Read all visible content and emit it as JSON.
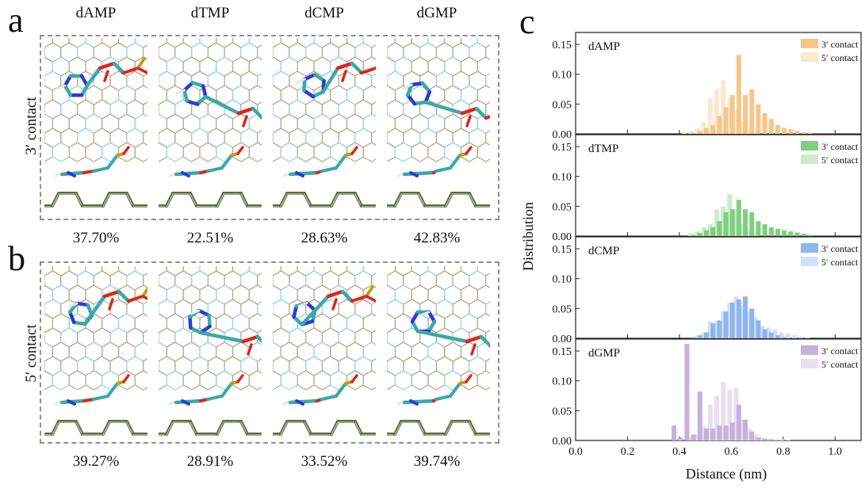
{
  "panels": {
    "a": "a",
    "b": "b",
    "c": "c"
  },
  "columns": [
    "dAMP",
    "dTMP",
    "dCMP",
    "dGMP"
  ],
  "row_labels": {
    "three_prime": "3′ contact",
    "five_prime": "5′ contact"
  },
  "percentages": {
    "three_prime": [
      "37.70%",
      "22.51%",
      "28.63%",
      "42.83%"
    ],
    "five_prime": [
      "39.27%",
      "28.91%",
      "33.52%",
      "39.74%"
    ]
  },
  "colors": {
    "graphene_tan": "#b5a98a",
    "graphene_cyan": "#8fd8e0",
    "carbon": "#3aa9a9",
    "nitrogen": "#2a3bd6",
    "oxygen": "#e0241b",
    "phosphorus": "#b8a215",
    "hydrogen": "#e8e8e8",
    "edge_olive": "#6b6a2a",
    "dAMP": "#f7c58a",
    "dTMP": "#7fcf7f",
    "dCMP": "#8fb5f0",
    "dGMP": "#c7b0dc"
  },
  "chart_data": {
    "type": "bar",
    "xlabel": "Distance (nm)",
    "ylabel": "Distribution",
    "xlim": [
      0.0,
      1.1
    ],
    "ylim": [
      0.0,
      0.17
    ],
    "xticks": [
      "0.0",
      "0.2",
      "0.4",
      "0.6",
      "0.8",
      "1.0"
    ],
    "yticks": [
      "0.00",
      "0.05",
      "0.10",
      "0.15"
    ],
    "bin_width": 0.025,
    "legend_position": "top-right",
    "subplots": [
      {
        "label": "dAMP",
        "color": "#f7c58a",
        "series": [
          {
            "name": "3′ contact",
            "x": [
              0.45,
              0.475,
              0.5,
              0.525,
              0.55,
              0.575,
              0.6,
              0.625,
              0.65,
              0.675,
              0.7,
              0.725,
              0.75,
              0.775,
              0.8,
              0.825,
              0.85,
              0.875,
              0.9
            ],
            "values": [
              0.002,
              0.005,
              0.01,
              0.015,
              0.03,
              0.045,
              0.065,
              0.132,
              0.065,
              0.075,
              0.05,
              0.035,
              0.025,
              0.015,
              0.01,
              0.008,
              0.005,
              0.003,
              0.002
            ]
          },
          {
            "name": "5′ contact",
            "x": [
              0.425,
              0.45,
              0.475,
              0.5,
              0.525,
              0.55,
              0.575,
              0.6,
              0.625,
              0.65,
              0.675,
              0.7
            ],
            "values": [
              0.003,
              0.005,
              0.01,
              0.02,
              0.06,
              0.075,
              0.09,
              0.06,
              0.04,
              0.02,
              0.01,
              0.005
            ]
          }
        ]
      },
      {
        "label": "dTMP",
        "color": "#7fcf7f",
        "series": [
          {
            "name": "3′ contact",
            "x": [
              0.45,
              0.475,
              0.5,
              0.525,
              0.55,
              0.575,
              0.6,
              0.625,
              0.65,
              0.675,
              0.7,
              0.725,
              0.75,
              0.775,
              0.8,
              0.825,
              0.85,
              0.875,
              0.9
            ],
            "values": [
              0.002,
              0.005,
              0.01,
              0.015,
              0.025,
              0.04,
              0.045,
              0.061,
              0.045,
              0.04,
              0.025,
              0.02,
              0.015,
              0.012,
              0.01,
              0.008,
              0.006,
              0.004,
              0.002
            ]
          },
          {
            "name": "5′ contact",
            "x": [
              0.45,
              0.475,
              0.5,
              0.525,
              0.55,
              0.575,
              0.6,
              0.625,
              0.65,
              0.675,
              0.7
            ],
            "values": [
              0.005,
              0.008,
              0.015,
              0.02,
              0.045,
              0.05,
              0.07,
              0.045,
              0.02,
              0.01,
              0.005
            ]
          }
        ]
      },
      {
        "label": "dCMP",
        "color": "#8fb5f0",
        "series": [
          {
            "name": "3′ contact",
            "x": [
              0.45,
              0.475,
              0.5,
              0.525,
              0.55,
              0.575,
              0.6,
              0.625,
              0.65,
              0.675,
              0.7,
              0.725,
              0.75,
              0.775,
              0.8
            ],
            "values": [
              0.002,
              0.005,
              0.01,
              0.025,
              0.03,
              0.045,
              0.06,
              0.065,
              0.07,
              0.05,
              0.03,
              0.015,
              0.01,
              0.005,
              0.002
            ]
          },
          {
            "name": "5′ contact",
            "x": [
              0.475,
              0.5,
              0.525,
              0.55,
              0.575,
              0.6,
              0.625,
              0.65,
              0.675,
              0.7,
              0.725,
              0.75,
              0.775,
              0.8,
              0.825,
              0.85,
              0.875,
              0.9
            ],
            "values": [
              0.005,
              0.01,
              0.028,
              0.028,
              0.045,
              0.06,
              0.07,
              0.055,
              0.045,
              0.035,
              0.02,
              0.018,
              0.015,
              0.01,
              0.008,
              0.005,
              0.003,
              0.002
            ]
          }
        ]
      },
      {
        "label": "dGMP",
        "color": "#c7b0dc",
        "series": [
          {
            "name": "3′ contact",
            "x": [
              0.375,
              0.4,
              0.425,
              0.45,
              0.475,
              0.5,
              0.525,
              0.55,
              0.575,
              0.6,
              0.625,
              0.65,
              0.675,
              0.7,
              0.725,
              0.75,
              0.775
            ],
            "values": [
              0.025,
              0.005,
              0.162,
              0.01,
              0.082,
              0.02,
              0.02,
              0.025,
              0.025,
              0.03,
              0.06,
              0.035,
              0.015,
              0.005,
              0.003,
              0.002,
              0.001
            ]
          },
          {
            "name": "5′ contact",
            "x": [
              0.45,
              0.475,
              0.5,
              0.525,
              0.55,
              0.575,
              0.6,
              0.625,
              0.65,
              0.675,
              0.7,
              0.725,
              0.75,
              0.775,
              0.8,
              0.825
            ],
            "values": [
              0.005,
              0.01,
              0.025,
              0.06,
              0.075,
              0.098,
              0.085,
              0.088,
              0.035,
              0.02,
              0.01,
              0.005,
              0.003,
              0.002,
              0.002,
              0.001
            ]
          }
        ]
      }
    ]
  }
}
